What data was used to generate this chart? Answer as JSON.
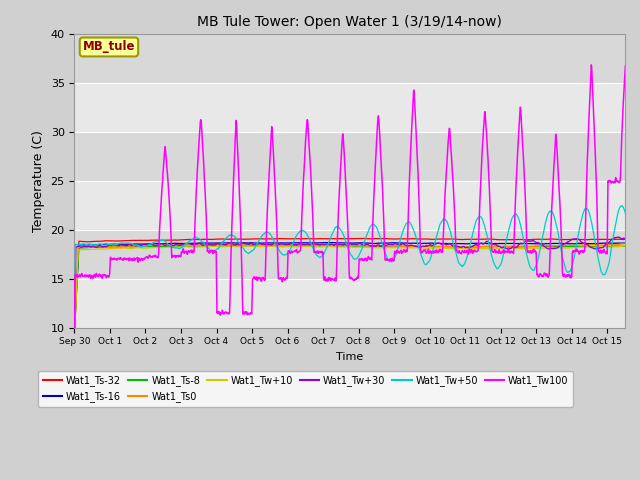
{
  "title": "MB Tule Tower: Open Water 1 (3/19/14-now)",
  "xlabel": "Time",
  "ylabel": "Temperature (C)",
  "ylim": [
    10,
    40
  ],
  "xlim": [
    0,
    15.5
  ],
  "yticks": [
    10,
    15,
    20,
    25,
    30,
    35,
    40
  ],
  "xtick_labels": [
    "Sep 30",
    "Oct 1",
    "Oct 2",
    "Oct 3",
    "Oct 4",
    "Oct 5",
    "Oct 6",
    "Oct 7",
    "Oct 8",
    "Oct 9",
    "Oct 10",
    "Oct 11",
    "Oct 12",
    "Oct 13",
    "Oct 14",
    "Oct 15"
  ],
  "xtick_pos": [
    0,
    1,
    2,
    3,
    4,
    5,
    6,
    7,
    8,
    9,
    10,
    11,
    12,
    13,
    14,
    15
  ],
  "band_colors": [
    "#e8e8e8",
    "#d8d8d8"
  ],
  "series": [
    {
      "name": "Wat1_Ts-32",
      "color": "#ff0000"
    },
    {
      "name": "Wat1_Ts-16",
      "color": "#0000bb"
    },
    {
      "name": "Wat1_Ts-8",
      "color": "#00bb00"
    },
    {
      "name": "Wat1_Ts0",
      "color": "#ff8800"
    },
    {
      "name": "Wat1_Tw+10",
      "color": "#cccc00"
    },
    {
      "name": "Wat1_Tw+30",
      "color": "#9900cc"
    },
    {
      "name": "Wat1_Tw+50",
      "color": "#00cccc"
    },
    {
      "name": "Wat1_Tw100",
      "color": "#ff00ff"
    }
  ],
  "annotation_text": "MB_tule",
  "magenta_peaks": [
    15.3,
    17.0,
    28.7,
    31.7,
    31.5,
    30.7,
    31.5,
    30.2,
    32.0,
    34.5,
    30.7,
    32.5,
    32.8,
    29.8,
    37.0,
    39.5
  ],
  "magenta_troughs": [
    15.3,
    17.0,
    17.3,
    17.8,
    11.5,
    15.0,
    17.8,
    15.0,
    17.0,
    17.8,
    17.8,
    17.8,
    17.8,
    15.3,
    17.8,
    25.0
  ]
}
